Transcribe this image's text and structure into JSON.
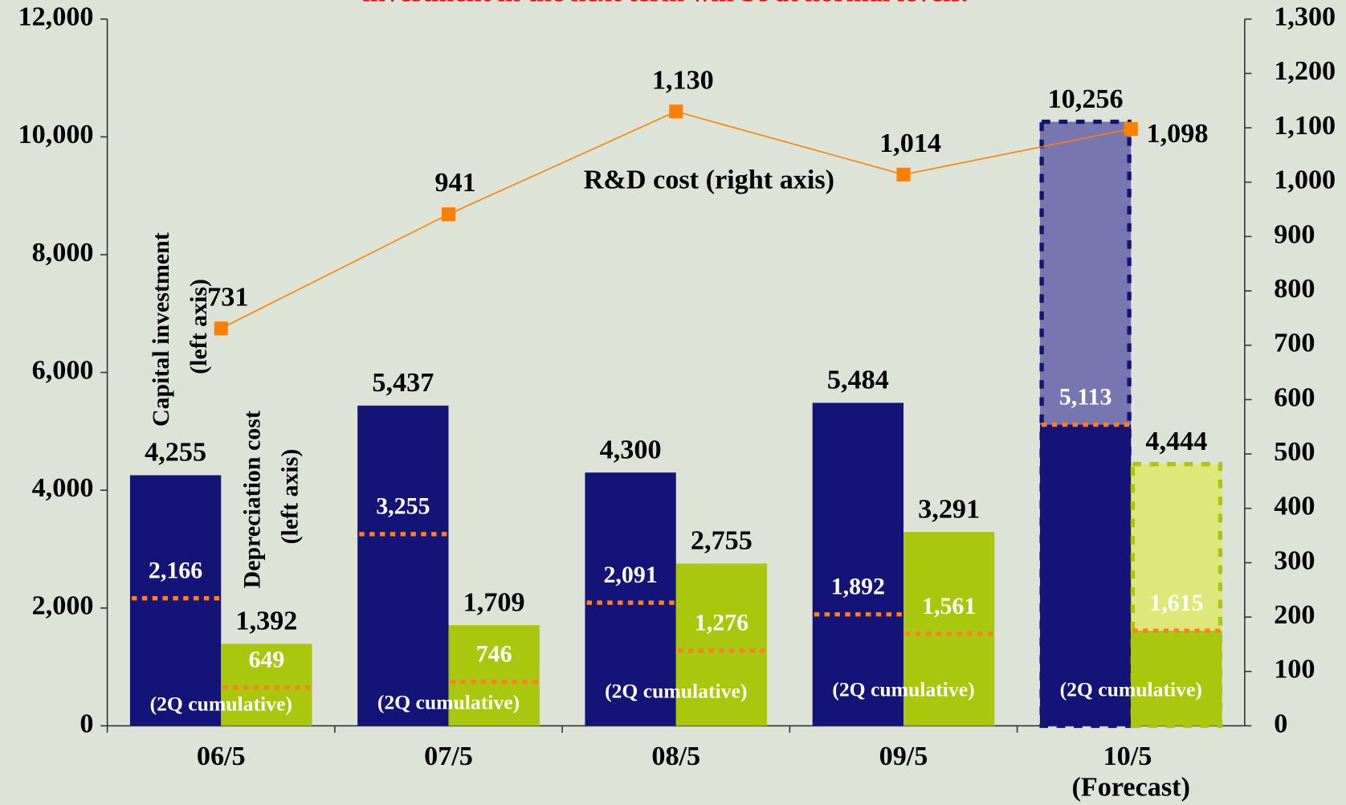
{
  "chart_data": {
    "type": "bar",
    "title": "investment in the next term will be at normal levels.",
    "title_color": "#ff0000",
    "categories": [
      "06/5",
      "07/5",
      "08/5",
      "09/5",
      "10/5 (Forecast)"
    ],
    "forecast": [
      false,
      false,
      false,
      false,
      true
    ],
    "cumulative_label": "(2Q cumulative)",
    "ylim": [
      0,
      12000
    ],
    "yticks": [
      {
        "value": 0,
        "label": "0"
      },
      {
        "value": 2000,
        "label": "2,000"
      },
      {
        "value": 4000,
        "label": "4,000"
      },
      {
        "value": 6000,
        "label": "6,000"
      },
      {
        "value": 8000,
        "label": "8,000"
      },
      {
        "value": 10000,
        "label": "10,000"
      },
      {
        "value": 12000,
        "label": "12,000"
      }
    ],
    "y2lim": [
      0,
      1300
    ],
    "y2ticks": [
      0,
      100,
      200,
      300,
      400,
      500,
      600,
      700,
      800,
      900,
      {
        "value": 1000,
        "label": "1,000"
      },
      {
        "value": 1100,
        "label": "1,100"
      },
      {
        "value": 1200,
        "label": "1,200"
      },
      {
        "value": 1300,
        "label": "1,300"
      }
    ],
    "grid": false,
    "series": [
      {
        "name": "Capital investment (left axis)",
        "color": "#141478",
        "forecast_color": "#7876b0",
        "values": [
          4255,
          5437,
          4300,
          5484,
          10256
        ],
        "value_labels": [
          "4,255",
          "5,437",
          "4,300",
          "5,484",
          "10,256"
        ],
        "cumulative": [
          2166,
          3255,
          2091,
          1892,
          5113
        ],
        "cumulative_labels": [
          "2,166",
          "3,255",
          "2,091",
          "1,892",
          "5,113"
        ]
      },
      {
        "name": "Depreciation cost (left axis)",
        "color": "#a9c70c",
        "forecast_color": "#dde77a",
        "values": [
          1392,
          1709,
          2755,
          3291,
          4444
        ],
        "value_labels": [
          "1,392",
          "1,709",
          "2,755",
          "3,291",
          "4,444"
        ],
        "cumulative": [
          649,
          746,
          1276,
          1561,
          1615
        ],
        "cumulative_labels": [
          "649",
          "746",
          "1,276",
          "1,561",
          "1,615"
        ]
      },
      {
        "name": "R&D cost (right axis)",
        "color": "#ff8000",
        "axis": "y2",
        "type": "line",
        "values": [
          731,
          941,
          1130,
          1014,
          1098
        ],
        "value_labels": [
          "731",
          "941",
          "1,130",
          "1,014",
          "1,098"
        ]
      }
    ],
    "cumulative_color": "#ff7f27"
  }
}
